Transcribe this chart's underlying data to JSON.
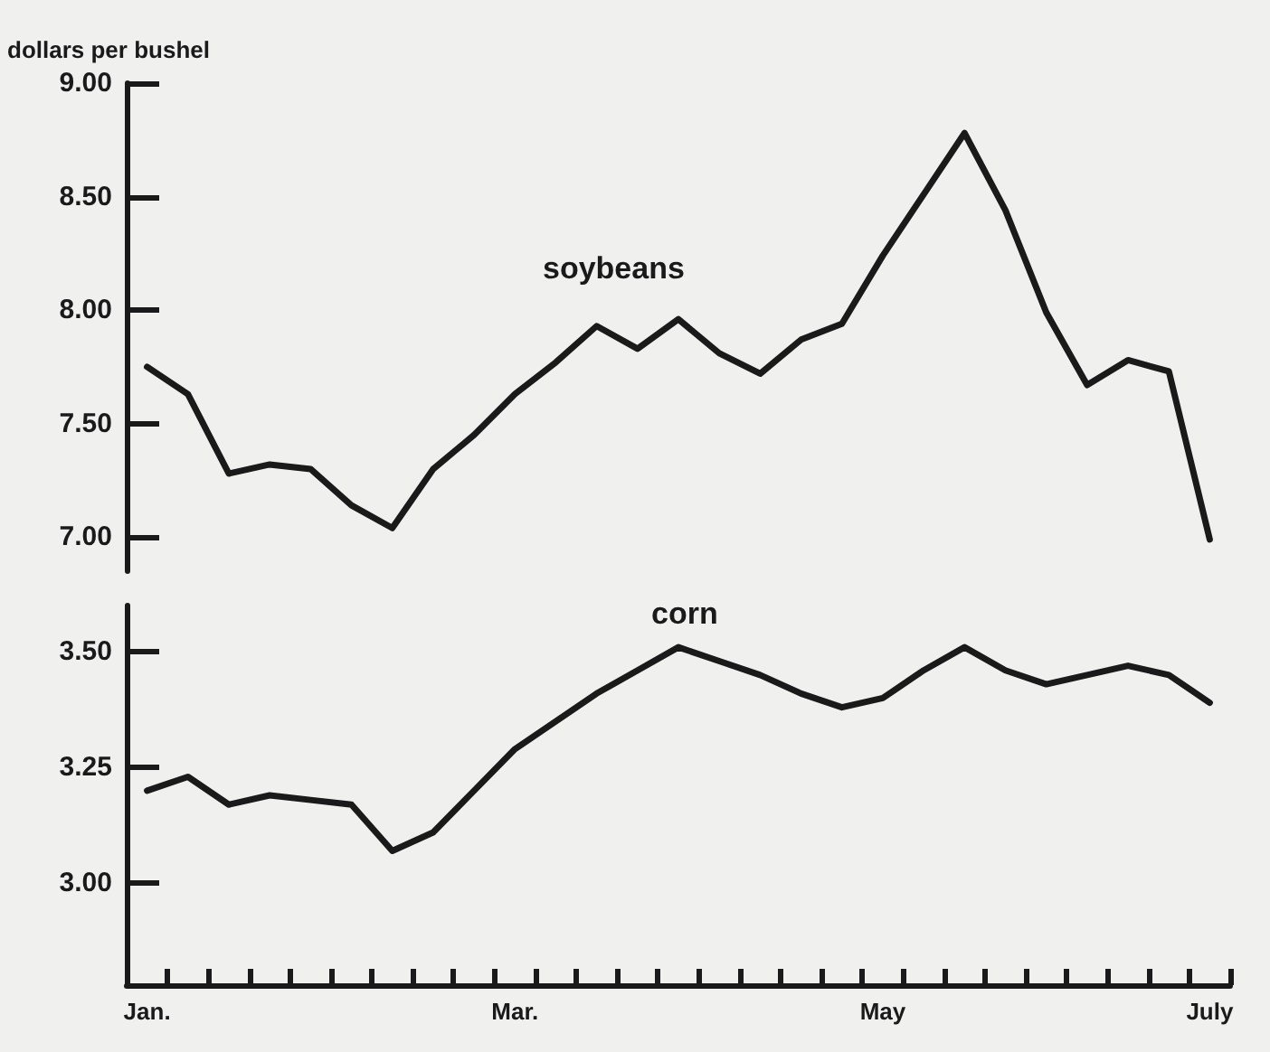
{
  "chart_data": [
    {
      "type": "line",
      "ylabel": "dollars per bushel",
      "categories": [
        null,
        null,
        null,
        null,
        null,
        null,
        null,
        null,
        null,
        null,
        null,
        null,
        null,
        null,
        null,
        null,
        null,
        null,
        null,
        null,
        null,
        null,
        null,
        null,
        null,
        null,
        null
      ],
      "series": [
        {
          "name": "soybeans",
          "color": "#1a1a1a",
          "values": [
            7.75,
            7.63,
            7.28,
            7.32,
            7.3,
            7.14,
            7.04,
            7.3,
            7.45,
            7.63,
            7.77,
            7.93,
            7.83,
            7.96,
            7.81,
            7.72,
            7.87,
            7.94,
            8.24,
            8.51,
            8.78,
            8.44,
            7.99,
            7.67,
            7.78,
            7.73,
            6.99
          ]
        }
      ],
      "ylim": [
        6.85,
        9.0
      ],
      "yticks": [
        {
          "value": 7,
          "label": "7.00"
        },
        {
          "value": 7.5,
          "label": "7.50"
        },
        {
          "value": 8,
          "label": "8.00"
        },
        {
          "value": 8.5,
          "label": "8.50"
        },
        {
          "value": 9,
          "label": "9.00"
        }
      ],
      "grid": false,
      "legend": false,
      "marker": "none",
      "line_style": "solid"
    },
    {
      "type": "line",
      "categories": [
        "Jan.",
        null,
        null,
        null,
        null,
        null,
        null,
        null,
        null,
        "Mar.",
        null,
        null,
        null,
        null,
        null,
        null,
        null,
        null,
        "May",
        null,
        null,
        null,
        null,
        null,
        null,
        null,
        "July"
      ],
      "series": [
        {
          "name": "corn",
          "color": "#1a1a1a",
          "values": [
            3.2,
            3.23,
            3.17,
            3.19,
            3.18,
            3.17,
            3.07,
            3.11,
            3.2,
            3.29,
            3.35,
            3.41,
            3.46,
            3.51,
            3.48,
            3.45,
            3.41,
            3.38,
            3.4,
            3.46,
            3.51,
            3.46,
            3.43,
            3.45,
            3.47,
            3.45,
            3.39
          ]
        }
      ],
      "ylim": [
        2.78,
        3.6
      ],
      "yticks": [
        {
          "value": 3,
          "label": "3.00"
        },
        {
          "value": 3.25,
          "label": "3.25"
        },
        {
          "value": 3.5,
          "label": "3.50"
        }
      ],
      "grid": false,
      "legend": false,
      "marker": "none",
      "line_style": "solid"
    }
  ]
}
